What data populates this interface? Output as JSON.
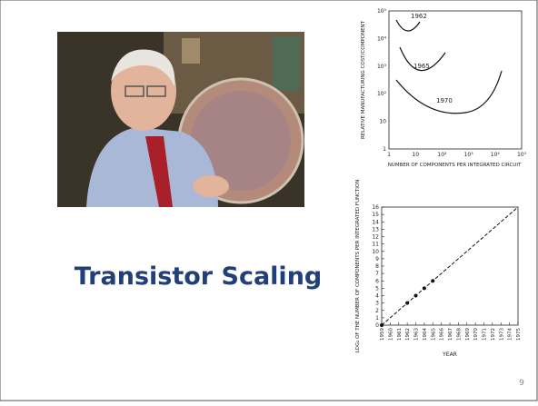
{
  "slide": {
    "title": "Transistor Scaling",
    "page_number": "9"
  },
  "figure_cost": {
    "y_label": "RELATIVE MANUFACTURING COST/COMPONENT",
    "x_label": "NUMBER OF COMPONENTS PER INTEGRATED CIRCUIT",
    "yticks": [
      "10⁵",
      "10⁴",
      "10³",
      "10²",
      "10",
      "1"
    ],
    "xticks": [
      "1",
      "10",
      "10²",
      "10³",
      "10⁴",
      "10⁵"
    ],
    "curve_labels": [
      "1962",
      "1965",
      "1970"
    ]
  },
  "figure_growth": {
    "type": "scatter",
    "y_label": "LOG₂ OF THE NUMBER OF COMPONENTS PER INTEGRATED FUNCTION",
    "x_label": "YEAR",
    "xlim": [
      1959,
      1975
    ],
    "ylim": [
      0,
      16
    ],
    "xticks": [
      1959,
      1960,
      1961,
      1962,
      1963,
      1964,
      1965,
      1966,
      1967,
      1968,
      1969,
      1970,
      1971,
      1972,
      1973,
      1974,
      1975
    ],
    "yticks": [
      0,
      1,
      2,
      3,
      4,
      5,
      6,
      7,
      8,
      9,
      10,
      11,
      12,
      13,
      14,
      15,
      16
    ],
    "x": [
      1959,
      1962,
      1963,
      1964,
      1965
    ],
    "values": [
      0,
      3,
      4,
      5,
      6
    ]
  }
}
